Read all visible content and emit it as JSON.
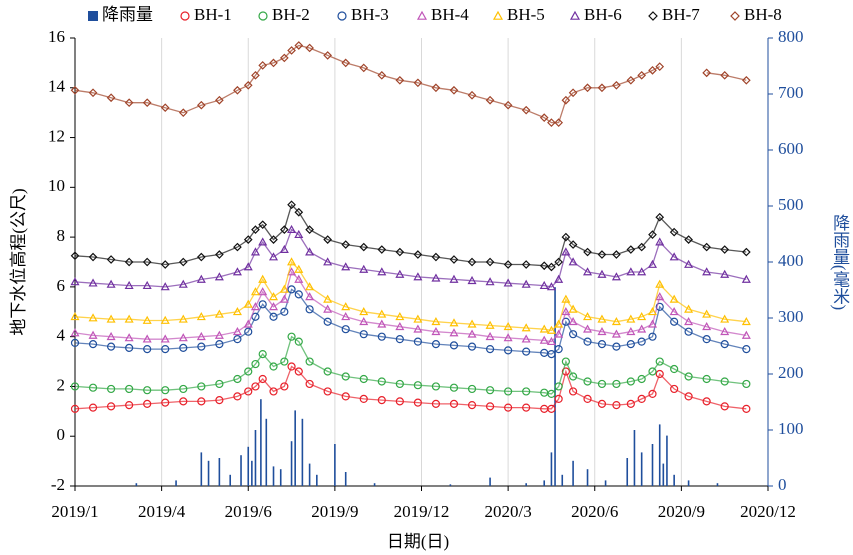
{
  "chart_data": {
    "type": "line",
    "x_label": "日期(日)",
    "y_label": "地下水位高程(公尺)",
    "y2_label": "降雨量(毫米)",
    "xlim": [
      2019.0,
      2020.92
    ],
    "xticks": [
      {
        "value": 2019.0,
        "label": "2019/1"
      },
      {
        "value": 2019.24,
        "label": "2019/4"
      },
      {
        "value": 2019.48,
        "label": "2019/6"
      },
      {
        "value": 2019.72,
        "label": "2019/9"
      },
      {
        "value": 2019.96,
        "label": "2019/12"
      },
      {
        "value": 2020.2,
        "label": "2020/3"
      },
      {
        "value": 2020.44,
        "label": "2020/6"
      },
      {
        "value": 2020.68,
        "label": "2020/9"
      },
      {
        "value": 2020.92,
        "label": "2020/12"
      }
    ],
    "ylim": [
      -2,
      16
    ],
    "yticks": [
      -2,
      0,
      2,
      4,
      6,
      8,
      10,
      12,
      14,
      16
    ],
    "y2lim": [
      0,
      800
    ],
    "y2ticks": [
      0,
      100,
      200,
      300,
      400,
      500,
      600,
      700,
      800
    ],
    "grid": "x",
    "legend": "top",
    "x": [
      2019.0,
      2019.05,
      2019.1,
      2019.15,
      2019.2,
      2019.25,
      2019.3,
      2019.35,
      2019.4,
      2019.45,
      2019.48,
      2019.5,
      2019.52,
      2019.55,
      2019.58,
      2019.6,
      2019.62,
      2019.65,
      2019.7,
      2019.75,
      2019.8,
      2019.85,
      2019.9,
      2019.95,
      2020.0,
      2020.05,
      2020.1,
      2020.15,
      2020.2,
      2020.25,
      2020.3,
      2020.32,
      2020.34,
      2020.36,
      2020.38,
      2020.42,
      2020.46,
      2020.5,
      2020.54,
      2020.57,
      2020.6,
      2020.62,
      2020.66,
      2020.7,
      2020.75,
      2020.8,
      2020.86
    ],
    "series": [
      {
        "name": "降雨量",
        "type": "bar",
        "axis": "y2",
        "color": "#1f4e9c",
        "x": [
          2019.17,
          2019.28,
          2019.35,
          2019.37,
          2019.4,
          2019.43,
          2019.46,
          2019.48,
          2019.49,
          2019.5,
          2019.515,
          2019.53,
          2019.55,
          2019.57,
          2019.6,
          2019.61,
          2019.63,
          2019.65,
          2019.67,
          2019.72,
          2019.75,
          2019.83,
          2020.04,
          2020.15,
          2020.25,
          2020.3,
          2020.32,
          2020.33,
          2020.35,
          2020.38,
          2020.42,
          2020.47,
          2020.53,
          2020.55,
          2020.57,
          2020.6,
          2020.62,
          2020.63,
          2020.64,
          2020.66,
          2020.7,
          2020.78
        ],
        "values": [
          5,
          10,
          60,
          45,
          50,
          20,
          55,
          70,
          45,
          100,
          155,
          120,
          35,
          30,
          80,
          135,
          120,
          40,
          20,
          75,
          25,
          5,
          3,
          15,
          5,
          10,
          60,
          355,
          20,
          45,
          30,
          10,
          50,
          100,
          60,
          75,
          110,
          40,
          90,
          20,
          10,
          5
        ]
      },
      {
        "name": "BH-1",
        "marker": "circle",
        "color": "#e8202a",
        "values": [
          1.1,
          1.15,
          1.2,
          1.25,
          1.3,
          1.35,
          1.4,
          1.4,
          1.45,
          1.6,
          1.8,
          2.0,
          2.3,
          1.8,
          2.0,
          2.8,
          2.6,
          2.1,
          1.8,
          1.6,
          1.5,
          1.45,
          1.4,
          1.35,
          1.3,
          1.3,
          1.25,
          1.2,
          1.15,
          1.15,
          1.1,
          1.1,
          1.5,
          2.6,
          1.8,
          1.5,
          1.3,
          1.25,
          1.3,
          1.5,
          1.7,
          2.5,
          1.9,
          1.6,
          1.4,
          1.2,
          1.1
        ]
      },
      {
        "name": "BH-2",
        "marker": "circle",
        "color": "#33a846",
        "values": [
          2.0,
          1.95,
          1.9,
          1.9,
          1.85,
          1.85,
          1.9,
          2.0,
          2.1,
          2.3,
          2.6,
          2.9,
          3.3,
          2.8,
          3.0,
          4.0,
          3.8,
          3.0,
          2.6,
          2.4,
          2.3,
          2.2,
          2.1,
          2.05,
          2.0,
          1.95,
          1.9,
          1.85,
          1.8,
          1.8,
          1.75,
          1.7,
          2.0,
          3.0,
          2.4,
          2.2,
          2.1,
          2.1,
          2.2,
          2.3,
          2.6,
          3.0,
          2.7,
          2.4,
          2.3,
          2.2,
          2.1
        ]
      },
      {
        "name": "BH-3",
        "marker": "circle",
        "color": "#1f4e9c",
        "values": [
          3.75,
          3.7,
          3.6,
          3.55,
          3.5,
          3.5,
          3.55,
          3.6,
          3.7,
          3.9,
          4.2,
          4.8,
          5.3,
          4.8,
          5.0,
          5.9,
          5.7,
          5.1,
          4.6,
          4.3,
          4.1,
          4.0,
          3.9,
          3.8,
          3.7,
          3.65,
          3.6,
          3.5,
          3.45,
          3.4,
          3.35,
          3.3,
          3.5,
          4.6,
          4.1,
          3.8,
          3.7,
          3.6,
          3.7,
          3.8,
          4.0,
          5.2,
          4.6,
          4.2,
          3.9,
          3.7,
          3.5
        ]
      },
      {
        "name": "BH-4",
        "marker": "triangle",
        "color": "#c055b8",
        "values": [
          4.15,
          4.05,
          4.0,
          3.95,
          3.9,
          3.9,
          3.95,
          4.0,
          4.05,
          4.2,
          4.5,
          5.2,
          5.8,
          5.2,
          5.5,
          6.6,
          6.3,
          5.6,
          5.1,
          4.8,
          4.6,
          4.5,
          4.4,
          4.3,
          4.2,
          4.15,
          4.1,
          4.0,
          3.95,
          3.9,
          3.85,
          3.8,
          4.1,
          5.0,
          4.6,
          4.3,
          4.2,
          4.1,
          4.2,
          4.3,
          4.5,
          5.6,
          5.0,
          4.6,
          4.4,
          4.2,
          4.05
        ]
      },
      {
        "name": "BH-5",
        "marker": "triangle",
        "color": "#ffc000",
        "values": [
          4.8,
          4.75,
          4.7,
          4.7,
          4.65,
          4.65,
          4.7,
          4.8,
          4.9,
          5.0,
          5.3,
          5.8,
          6.3,
          5.6,
          5.9,
          7.0,
          6.7,
          6.0,
          5.5,
          5.2,
          5.0,
          4.9,
          4.8,
          4.7,
          4.6,
          4.55,
          4.5,
          4.45,
          4.4,
          4.35,
          4.3,
          4.25,
          4.5,
          5.5,
          5.1,
          4.8,
          4.7,
          4.6,
          4.7,
          4.8,
          5.0,
          6.1,
          5.5,
          5.1,
          4.9,
          4.7,
          4.6
        ]
      },
      {
        "name": "BH-6",
        "marker": "triangle",
        "color": "#7030a0",
        "values": [
          6.2,
          6.15,
          6.1,
          6.05,
          6.05,
          6.0,
          6.1,
          6.3,
          6.4,
          6.6,
          6.8,
          7.4,
          7.8,
          7.2,
          7.5,
          8.3,
          8.1,
          7.4,
          7.0,
          6.8,
          6.7,
          6.6,
          6.5,
          6.4,
          6.35,
          6.3,
          6.25,
          6.2,
          6.15,
          6.1,
          6.05,
          6.0,
          6.3,
          7.4,
          7.0,
          6.6,
          6.5,
          6.4,
          6.6,
          6.6,
          6.9,
          7.8,
          7.2,
          6.9,
          6.6,
          6.5,
          6.3
        ]
      },
      {
        "name": "BH-7",
        "marker": "diamond",
        "color": "#111111",
        "values": [
          7.25,
          7.2,
          7.1,
          7.0,
          7.0,
          6.9,
          7.0,
          7.2,
          7.3,
          7.6,
          7.9,
          8.3,
          8.5,
          7.9,
          8.3,
          9.3,
          9.0,
          8.3,
          7.9,
          7.7,
          7.6,
          7.5,
          7.4,
          7.3,
          7.2,
          7.1,
          7.0,
          7.0,
          6.9,
          6.9,
          6.85,
          6.8,
          7.0,
          8.0,
          7.7,
          7.4,
          7.3,
          7.3,
          7.5,
          7.6,
          8.1,
          8.8,
          8.2,
          7.9,
          7.6,
          7.5,
          7.4
        ]
      },
      {
        "name": "BH-8",
        "marker": "diamond",
        "color": "#a0442a",
        "values": [
          13.9,
          13.8,
          13.6,
          13.4,
          13.4,
          13.2,
          13.0,
          13.3,
          13.5,
          13.9,
          14.1,
          14.5,
          14.9,
          15.0,
          15.2,
          15.5,
          15.7,
          15.6,
          15.3,
          15.0,
          14.8,
          14.5,
          14.3,
          14.2,
          14.0,
          13.9,
          13.7,
          13.5,
          13.3,
          13.1,
          12.8,
          12.6,
          12.6,
          13.5,
          13.8,
          14.0,
          14.0,
          14.1,
          14.3,
          14.5,
          14.7,
          14.85,
          null,
          null,
          14.6,
          14.5,
          14.3
        ]
      }
    ]
  }
}
